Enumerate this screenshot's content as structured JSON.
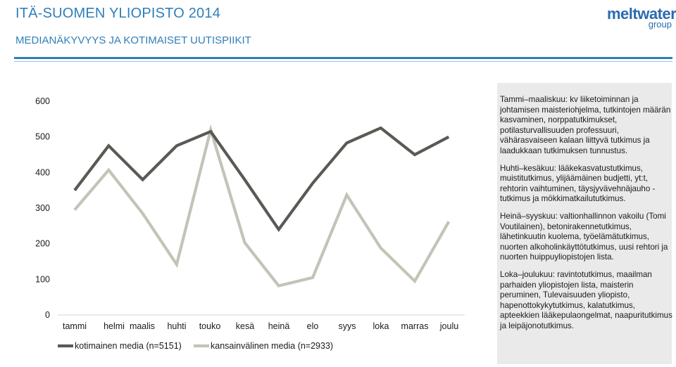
{
  "header": {
    "title": "ITÄ-SUOMEN YLIOPISTO 2014",
    "subtitle": "MEDIANÄKYVYYS JA KOTIMAISET UUTISPIIKIT",
    "logo_word": "meltwater",
    "logo_sub": "group"
  },
  "colors": {
    "accent": "#2f7fb8",
    "series_domestic": "#5a5a55",
    "series_international": "#c3c3b7",
    "panel_bg": "#eaeaea"
  },
  "chart_data": {
    "type": "line",
    "categories": [
      "tammi",
      "helmi",
      "maalis",
      "huhti",
      "touko",
      "kesä",
      "heinä",
      "elo",
      "syys",
      "loka",
      "marras",
      "joulu"
    ],
    "series": [
      {
        "name": "kotimainen media (n=5151)",
        "values": [
          350,
          475,
          380,
          475,
          515,
          380,
          240,
          370,
          483,
          525,
          450,
          500
        ]
      },
      {
        "name": "kansainvälinen media (n=2933)",
        "values": [
          295,
          407,
          285,
          142,
          520,
          203,
          82,
          105,
          337,
          188,
          95,
          262
        ]
      }
    ],
    "yticks": [
      "600",
      "500",
      "400",
      "300",
      "200",
      "100",
      "0"
    ],
    "ylim": [
      0,
      600
    ],
    "grid": false,
    "legend": "bottom"
  },
  "notes": [
    "Tammi–maaliskuu: kv liiketoiminnan ja johtamisen maisteriohjelma, tutkintojen määrän kasvaminen, norppatutkimukset, potilasturvallisuuden professuuri, vähärasvaiseen kalaan liittyvä tutkimus ja laadukkaan tutkimuksen tunnustus.",
    "Huhti–kesäkuu: lääkekasvatustutkimus, muistitutkimus, ylijäämäinen budjetti, yt:t, rehtorin vaihtuminen, täysjyvävehnäjauho -tutkimus ja mökkimatkailututkimus.",
    "Heinä–syyskuu: valtionhallinnon vakoilu (Tomi Voutilainen), betonirakennetutkimus, lähetinkuutin kuolema, työelämätutkimus, nuorten alkoholinkäyttötutkimus, uusi rehtori ja nuorten huippuyliopistojen lista.",
    "Loka–joulukuu: ravintotutkimus, maailman parhaiden yliopistojen lista, maisterin peruminen, Tulevaisuuden yliopisto, hapenottokykytutkimus, kalatutkimus, apteekkien lääkepulaongelmat, naapuritutkimus ja leipäjonotutkimus."
  ]
}
